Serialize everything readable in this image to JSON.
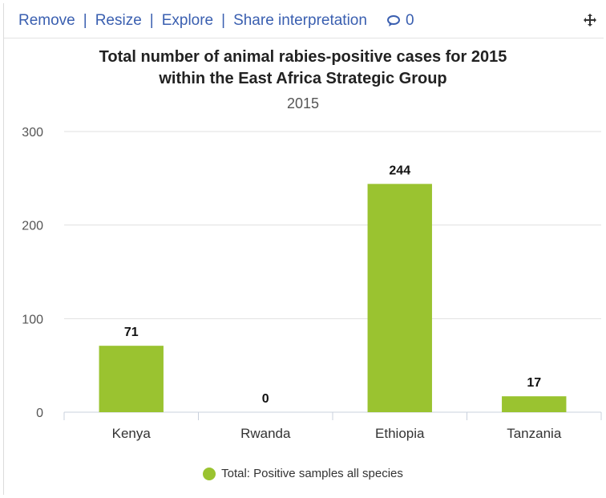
{
  "toolbar": {
    "remove": "Remove",
    "resize": "Resize",
    "explore": "Explore",
    "share": "Share interpretation",
    "comment_count": "0",
    "sep": "|"
  },
  "icons": {
    "comment": "comment-icon",
    "move": "move-icon"
  },
  "colors": {
    "bar": "#9ac330",
    "link": "#3a5fb0"
  },
  "chart_data": {
    "type": "bar",
    "title_line1": "Total number of animal rabies-positive cases for 2015",
    "title_line2": "within the East Africa Strategic Group",
    "subtitle": "2015",
    "categories": [
      "Kenya",
      "Rwanda",
      "Ethiopia",
      "Tanzania"
    ],
    "series": [
      {
        "name": "Total: Positive samples all species",
        "values": [
          71,
          0,
          244,
          17
        ]
      }
    ],
    "ylim": [
      0,
      300
    ],
    "yticks": [
      0,
      100,
      200,
      300
    ],
    "grid": true,
    "legend": "bottom-center"
  }
}
